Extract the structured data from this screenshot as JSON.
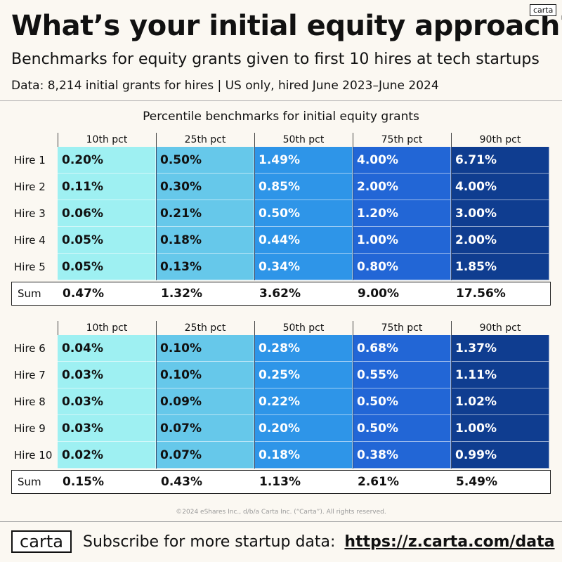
{
  "title": "What’s your initial equity approach?",
  "subtitle": "Benchmarks for equity grants given to first 10 hires at tech startups",
  "data_note": "Data: 8,214 initial grants for hires | US only, hired June 2023–June 2024",
  "logo_small": "carta",
  "copyright": "©2024 eShares Inc., d/b/a Carta Inc. (“Carta”). All rights reserved.",
  "footer": {
    "logo": "carta",
    "text": "Subscribe for more startup data:",
    "url": "https://z.carta.com/data"
  },
  "colors": {
    "p10": "#9ef0f2",
    "p25": "#66c8ea",
    "p50": "#2e95e8",
    "p75": "#2266d6",
    "p90": "#0f3d90"
  },
  "chart_data": {
    "type": "table",
    "title": "Percentile benchmarks for initial equity grants",
    "columns": [
      "10th pct",
      "25th pct",
      "50th pct",
      "75th pct",
      "90th pct"
    ],
    "tables": [
      {
        "rows": [
          {
            "label": "Hire 1",
            "values": [
              "0.20%",
              "0.50%",
              "1.49%",
              "4.00%",
              "6.71%"
            ]
          },
          {
            "label": "Hire 2",
            "values": [
              "0.11%",
              "0.30%",
              "0.85%",
              "2.00%",
              "4.00%"
            ]
          },
          {
            "label": "Hire 3",
            "values": [
              "0.06%",
              "0.21%",
              "0.50%",
              "1.20%",
              "3.00%"
            ]
          },
          {
            "label": "Hire 4",
            "values": [
              "0.05%",
              "0.18%",
              "0.44%",
              "1.00%",
              "2.00%"
            ]
          },
          {
            "label": "Hire 5",
            "values": [
              "0.05%",
              "0.13%",
              "0.34%",
              "0.80%",
              "1.85%"
            ]
          }
        ],
        "sum": {
          "label": "Sum",
          "values": [
            "0.47%",
            "1.32%",
            "3.62%",
            "9.00%",
            "17.56%"
          ]
        }
      },
      {
        "rows": [
          {
            "label": "Hire 6",
            "values": [
              "0.04%",
              "0.10%",
              "0.28%",
              "0.68%",
              "1.37%"
            ]
          },
          {
            "label": "Hire 7",
            "values": [
              "0.03%",
              "0.10%",
              "0.25%",
              "0.55%",
              "1.11%"
            ]
          },
          {
            "label": "Hire 8",
            "values": [
              "0.03%",
              "0.09%",
              "0.22%",
              "0.50%",
              "1.02%"
            ]
          },
          {
            "label": "Hire 9",
            "values": [
              "0.03%",
              "0.07%",
              "0.20%",
              "0.50%",
              "1.00%"
            ]
          },
          {
            "label": "Hire 10",
            "values": [
              "0.02%",
              "0.07%",
              "0.18%",
              "0.38%",
              "0.99%"
            ]
          }
        ],
        "sum": {
          "label": "Sum",
          "values": [
            "0.15%",
            "0.43%",
            "1.13%",
            "2.61%",
            "5.49%"
          ]
        }
      }
    ]
  }
}
